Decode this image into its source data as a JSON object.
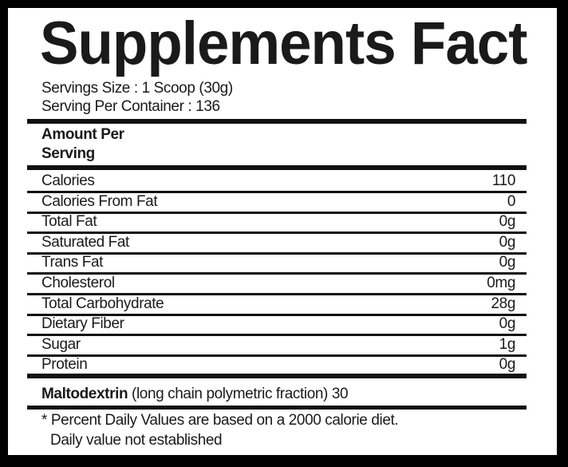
{
  "title": "Supplements Fact",
  "serving_size": "Servings Size : 1 Scoop (30g)",
  "servings_per_container": "Serving Per Container : 136",
  "amount_header": [
    "Amount Per",
    "Serving"
  ],
  "nutrients": [
    {
      "name": "Calories",
      "value": "110"
    },
    {
      "name": "Calories From Fat",
      "value": "0"
    },
    {
      "name": "Total Fat",
      "value": "0g"
    },
    {
      "name": "Saturated Fat",
      "value": "0g"
    },
    {
      "name": "Trans Fat",
      "value": "0g"
    },
    {
      "name": "Cholesterol",
      "value": "0mg"
    },
    {
      "name": "Total Carbohydrate",
      "value": "28g"
    },
    {
      "name": "Dietary Fiber",
      "value": "0g"
    },
    {
      "name": "Sugar",
      "value": "1g"
    },
    {
      "name": "Protein",
      "value": "0g"
    }
  ],
  "ingredient": {
    "name": "Maltodextrin",
    "detail": " (long chain polymetric fraction) 30"
  },
  "footnote": [
    "* Percent Daily Values are based on a 2000 calorie diet.",
    "Daily value not established"
  ]
}
